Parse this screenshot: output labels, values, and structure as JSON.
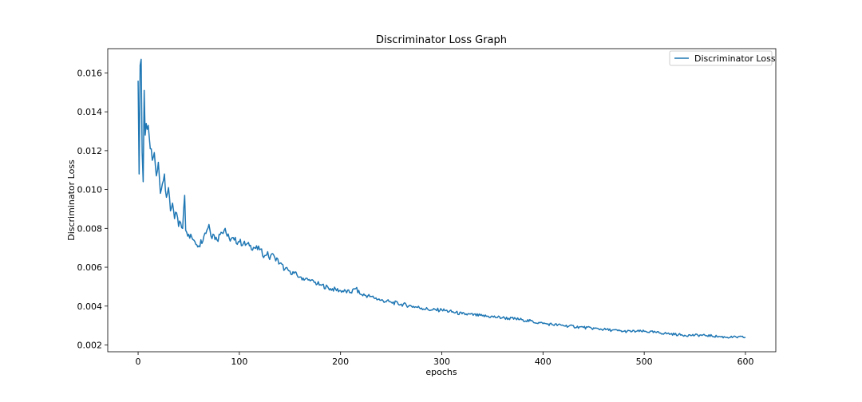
{
  "chart_data": {
    "type": "line",
    "title": "Discriminator Loss Graph",
    "xlabel": "epochs",
    "ylabel": "Discriminator Loss",
    "xlim": [
      -30,
      630
    ],
    "ylim": [
      0.00165,
      0.01725
    ],
    "xticks": [
      0,
      100,
      200,
      300,
      400,
      500,
      600
    ],
    "yticks": [
      0.002,
      0.004,
      0.006,
      0.008,
      0.01,
      0.012,
      0.014,
      0.016
    ],
    "xtick_labels": [
      "0",
      "100",
      "200",
      "300",
      "400",
      "500",
      "600"
    ],
    "ytick_labels": [
      "0.002",
      "0.004",
      "0.006",
      "0.008",
      "0.010",
      "0.012",
      "0.014",
      "0.016"
    ],
    "grid": false,
    "legend_position": "top-right",
    "series": [
      {
        "name": "Discriminator Loss",
        "color": "#1f77b4",
        "x": [
          0,
          1,
          2,
          3,
          4,
          5,
          6,
          7,
          8,
          9,
          10,
          11,
          12,
          14,
          16,
          18,
          20,
          22,
          24,
          26,
          28,
          30,
          32,
          34,
          36,
          38,
          40,
          42,
          44,
          46,
          47,
          48,
          50,
          55,
          60,
          65,
          70,
          72,
          74,
          78,
          82,
          86,
          88,
          90,
          95,
          100,
          110,
          115,
          120,
          125,
          128,
          130,
          133,
          135,
          140,
          145,
          150,
          160,
          170,
          180,
          190,
          200,
          210,
          215,
          220,
          230,
          240,
          250,
          260,
          270,
          280,
          290,
          300,
          320,
          340,
          360,
          380,
          400,
          420,
          440,
          460,
          480,
          500,
          520,
          540,
          560,
          580,
          600
        ],
        "y": [
          0.0156,
          0.0108,
          0.0164,
          0.0167,
          0.0119,
          0.0104,
          0.0151,
          0.0128,
          0.0134,
          0.0131,
          0.0133,
          0.0127,
          0.0121,
          0.0115,
          0.0119,
          0.0107,
          0.0114,
          0.0098,
          0.0103,
          0.0108,
          0.0096,
          0.0101,
          0.0089,
          0.0093,
          0.0085,
          0.0088,
          0.0081,
          0.0083,
          0.008,
          0.0097,
          0.0079,
          0.0078,
          0.0077,
          0.0074,
          0.0071,
          0.0076,
          0.0082,
          0.0076,
          0.0077,
          0.0074,
          0.0078,
          0.008,
          0.0076,
          0.0075,
          0.0074,
          0.0073,
          0.0071,
          0.007,
          0.0069,
          0.0066,
          0.0068,
          0.0064,
          0.0067,
          0.0065,
          0.0062,
          0.0059,
          0.0058,
          0.0055,
          0.0053,
          0.0051,
          0.0049,
          0.0048,
          0.0047,
          0.0049,
          0.0046,
          0.0045,
          0.0043,
          0.0042,
          0.0041,
          0.004,
          0.0039,
          0.0038,
          0.0038,
          0.0036,
          0.0035,
          0.0034,
          0.0033,
          0.0031,
          0.003,
          0.0029,
          0.0028,
          0.0027,
          0.0027,
          0.0026,
          0.0025,
          0.0025,
          0.0024,
          0.0024
        ]
      }
    ]
  }
}
